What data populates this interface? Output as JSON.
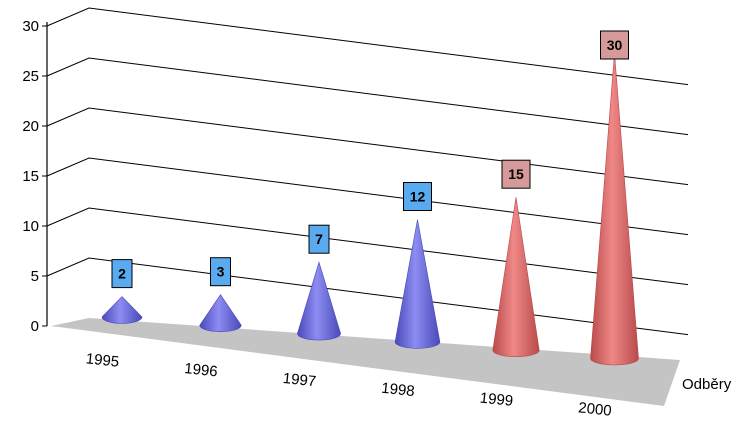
{
  "chart_data": {
    "type": "bar",
    "style": "3d-cone",
    "title": "",
    "xlabel": "",
    "ylabel": "",
    "categories": [
      "1995",
      "1996",
      "1997",
      "1998",
      "1999",
      "2000"
    ],
    "series": [
      {
        "name": "Odběry",
        "values": [
          2,
          3,
          7,
          12,
          15,
          30
        ]
      }
    ],
    "ylim": [
      0,
      30
    ],
    "yticks": [
      "0",
      "5",
      "10",
      "15",
      "20",
      "25",
      "30"
    ],
    "grid": true,
    "legend": "none",
    "data_labels": [
      "2",
      "3",
      "7",
      "12",
      "15",
      "30"
    ],
    "colors": {
      "blue_cone": "#8c8cf2",
      "blue_cone_dark": "#4a4ab8",
      "red_cone": "#f08888",
      "red_cone_dark": "#b84a4a",
      "blue_label_bg": "#5aaaf0",
      "red_label_bg": "#d79a9a",
      "floor": "#c4c4c4",
      "gridline": "#000000"
    }
  }
}
